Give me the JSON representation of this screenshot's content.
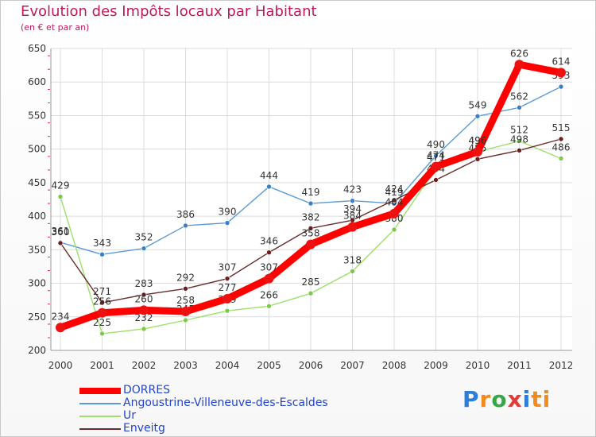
{
  "header": {
    "title": "Evolution des Impôts locaux par Habitant",
    "subtitle": "(en € et par an)"
  },
  "brand": {
    "letters": [
      "P",
      "r",
      "o",
      "x",
      "i",
      "ti"
    ]
  },
  "chart_data": {
    "type": "line",
    "title": "Evolution des Impôts locaux par Habitant",
    "subtitle": "(en € et par an)",
    "xlabel": "",
    "ylabel": "",
    "ylim": [
      200,
      650
    ],
    "yticks": [
      200,
      250,
      300,
      350,
      400,
      450,
      500,
      550,
      600,
      650
    ],
    "grid": true,
    "legend_position": "bottom-left",
    "categories": [
      "2000",
      "2001",
      "2002",
      "2003",
      "2004",
      "2005",
      "2006",
      "2007",
      "2008",
      "2009",
      "2010",
      "2011",
      "2012"
    ],
    "series": [
      {
        "name": "Angoustrine-Villeneuve-des-Escaldes",
        "color": "#5b9bd5",
        "marker": "#3b7fc4",
        "values": [
          361,
          343,
          352,
          386,
          390,
          444,
          419,
          423,
          419,
          490,
          549,
          562,
          593
        ]
      },
      {
        "name": "Ur",
        "color": "#9be06a",
        "marker": "#7cc94a",
        "values": [
          429,
          225,
          232,
          245,
          259,
          266,
          285,
          318,
          380,
          471,
          496,
          512,
          486
        ]
      },
      {
        "name": "Enveitg",
        "color": "#6b2b2b",
        "marker": "#6b1e1e",
        "values": [
          360,
          271,
          283,
          292,
          307,
          346,
          382,
          394,
          424,
          454,
          485,
          498,
          515
        ]
      },
      {
        "name": "DORRES",
        "color": "#ff0000",
        "marker": "#ee1111",
        "values": [
          234,
          256,
          260,
          258,
          277,
          307,
          358,
          384,
          404,
          474,
          496,
          626,
          614
        ]
      }
    ]
  },
  "legend": [
    {
      "label": "DORRES",
      "color": "#ff0000"
    },
    {
      "label": "Angoustrine-Villeneuve-des-Escaldes",
      "color": "#5b9bd5"
    },
    {
      "label": "Ur",
      "color": "#9be06a"
    },
    {
      "label": "Enveitg",
      "color": "#6b2b2b"
    }
  ]
}
